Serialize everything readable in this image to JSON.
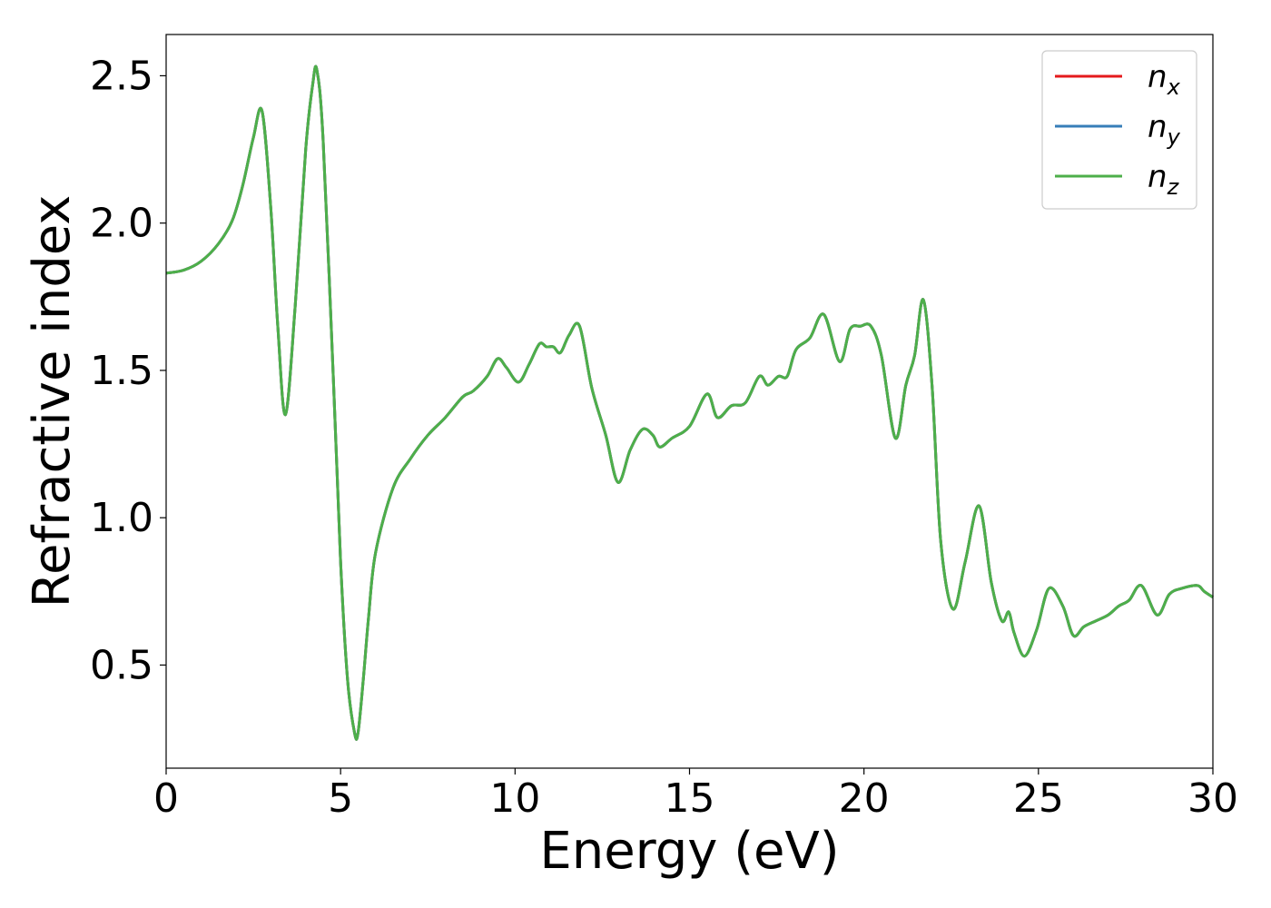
{
  "chart_data": {
    "type": "line",
    "title": "",
    "xlabel": "Energy (eV)",
    "ylabel": "Refractive index",
    "xlim": [
      0,
      30
    ],
    "ylim": [
      0.15,
      2.64
    ],
    "xticks": [
      0,
      5,
      10,
      15,
      20,
      25,
      30
    ],
    "xtick_labels": [
      "0",
      "5",
      "10",
      "15",
      "20",
      "25",
      "30"
    ],
    "yticks": [
      0.5,
      1.0,
      1.5,
      2.0,
      2.5
    ],
    "ytick_labels": [
      "0.5",
      "1.0",
      "1.5",
      "2.0",
      "2.5"
    ],
    "grid": false,
    "legend_position": "top-right",
    "x": [
      0,
      0.5,
      1,
      1.5,
      1.9,
      2.2,
      2.5,
      2.75,
      3.0,
      3.2,
      3.42,
      3.7,
      4.0,
      4.2,
      4.32,
      4.5,
      4.8,
      5.0,
      5.2,
      5.4,
      5.5,
      5.65,
      5.8,
      6.0,
      6.5,
      7.0,
      7.5,
      8.0,
      8.5,
      8.8,
      9.2,
      9.5,
      9.75,
      10.1,
      10.4,
      10.7,
      10.9,
      11.1,
      11.3,
      11.55,
      11.85,
      12.2,
      12.6,
      12.95,
      13.3,
      13.65,
      13.95,
      14.15,
      14.5,
      15.0,
      15.5,
      15.8,
      16.2,
      16.6,
      17.0,
      17.25,
      17.55,
      17.8,
      18.05,
      18.45,
      18.85,
      19.3,
      19.6,
      19.9,
      20.2,
      20.5,
      20.9,
      21.2,
      21.45,
      21.7,
      21.95,
      22.2,
      22.55,
      22.9,
      23.3,
      23.65,
      23.95,
      24.15,
      24.3,
      24.6,
      24.95,
      25.3,
      25.7,
      26.0,
      26.3,
      26.65,
      27.0,
      27.3,
      27.6,
      27.95,
      28.4,
      28.75,
      29.1,
      29.55,
      29.75,
      30.0
    ],
    "series": [
      {
        "name": "x",
        "color": "#e41a1c",
        "values": [
          1.83,
          1.84,
          1.87,
          1.93,
          2.01,
          2.13,
          2.29,
          2.38,
          2.05,
          1.65,
          1.35,
          1.72,
          2.25,
          2.47,
          2.52,
          2.28,
          1.45,
          0.85,
          0.45,
          0.27,
          0.27,
          0.45,
          0.66,
          0.88,
          1.1,
          1.2,
          1.28,
          1.34,
          1.41,
          1.43,
          1.48,
          1.54,
          1.51,
          1.46,
          1.52,
          1.59,
          1.58,
          1.58,
          1.56,
          1.62,
          1.65,
          1.44,
          1.28,
          1.12,
          1.23,
          1.3,
          1.28,
          1.24,
          1.27,
          1.31,
          1.42,
          1.34,
          1.38,
          1.39,
          1.48,
          1.45,
          1.48,
          1.48,
          1.57,
          1.61,
          1.69,
          1.53,
          1.64,
          1.65,
          1.65,
          1.55,
          1.27,
          1.45,
          1.55,
          1.74,
          1.45,
          0.92,
          0.69,
          0.85,
          1.04,
          0.78,
          0.65,
          0.68,
          0.61,
          0.53,
          0.62,
          0.76,
          0.7,
          0.6,
          0.63,
          0.65,
          0.67,
          0.7,
          0.72,
          0.77,
          0.67,
          0.74,
          0.76,
          0.77,
          0.75,
          0.73
        ]
      },
      {
        "name": "y",
        "color": "#377eb8",
        "values": [
          1.83,
          1.84,
          1.87,
          1.93,
          2.01,
          2.13,
          2.29,
          2.38,
          2.05,
          1.65,
          1.35,
          1.72,
          2.25,
          2.47,
          2.52,
          2.28,
          1.45,
          0.85,
          0.45,
          0.27,
          0.27,
          0.45,
          0.66,
          0.88,
          1.1,
          1.2,
          1.28,
          1.34,
          1.41,
          1.43,
          1.48,
          1.54,
          1.51,
          1.46,
          1.52,
          1.59,
          1.58,
          1.58,
          1.56,
          1.62,
          1.65,
          1.44,
          1.28,
          1.12,
          1.23,
          1.3,
          1.28,
          1.24,
          1.27,
          1.31,
          1.42,
          1.34,
          1.38,
          1.39,
          1.48,
          1.45,
          1.48,
          1.48,
          1.57,
          1.61,
          1.69,
          1.53,
          1.64,
          1.65,
          1.65,
          1.55,
          1.27,
          1.45,
          1.55,
          1.74,
          1.45,
          0.92,
          0.69,
          0.85,
          1.04,
          0.78,
          0.65,
          0.68,
          0.61,
          0.53,
          0.62,
          0.76,
          0.7,
          0.6,
          0.63,
          0.65,
          0.67,
          0.7,
          0.72,
          0.77,
          0.67,
          0.74,
          0.76,
          0.77,
          0.75,
          0.73
        ]
      },
      {
        "name": "z",
        "color": "#4daf4a",
        "values": [
          1.83,
          1.84,
          1.87,
          1.93,
          2.01,
          2.13,
          2.29,
          2.38,
          2.05,
          1.65,
          1.35,
          1.72,
          2.25,
          2.47,
          2.52,
          2.28,
          1.45,
          0.85,
          0.45,
          0.27,
          0.27,
          0.45,
          0.66,
          0.88,
          1.1,
          1.2,
          1.28,
          1.34,
          1.41,
          1.43,
          1.48,
          1.54,
          1.51,
          1.46,
          1.52,
          1.59,
          1.58,
          1.58,
          1.56,
          1.62,
          1.65,
          1.44,
          1.28,
          1.12,
          1.23,
          1.3,
          1.28,
          1.24,
          1.27,
          1.31,
          1.42,
          1.34,
          1.38,
          1.39,
          1.48,
          1.45,
          1.48,
          1.48,
          1.57,
          1.61,
          1.69,
          1.53,
          1.64,
          1.65,
          1.65,
          1.55,
          1.27,
          1.45,
          1.55,
          1.74,
          1.45,
          0.92,
          0.69,
          0.85,
          1.04,
          0.78,
          0.65,
          0.68,
          0.61,
          0.53,
          0.62,
          0.76,
          0.7,
          0.6,
          0.63,
          0.65,
          0.67,
          0.7,
          0.72,
          0.77,
          0.67,
          0.74,
          0.76,
          0.77,
          0.75,
          0.73
        ]
      }
    ],
    "legend": [
      {
        "symbol": "n",
        "subscript": "x",
        "color": "#e41a1c"
      },
      {
        "symbol": "n",
        "subscript": "y",
        "color": "#377eb8"
      },
      {
        "symbol": "n",
        "subscript": "z",
        "color": "#4daf4a"
      }
    ]
  }
}
